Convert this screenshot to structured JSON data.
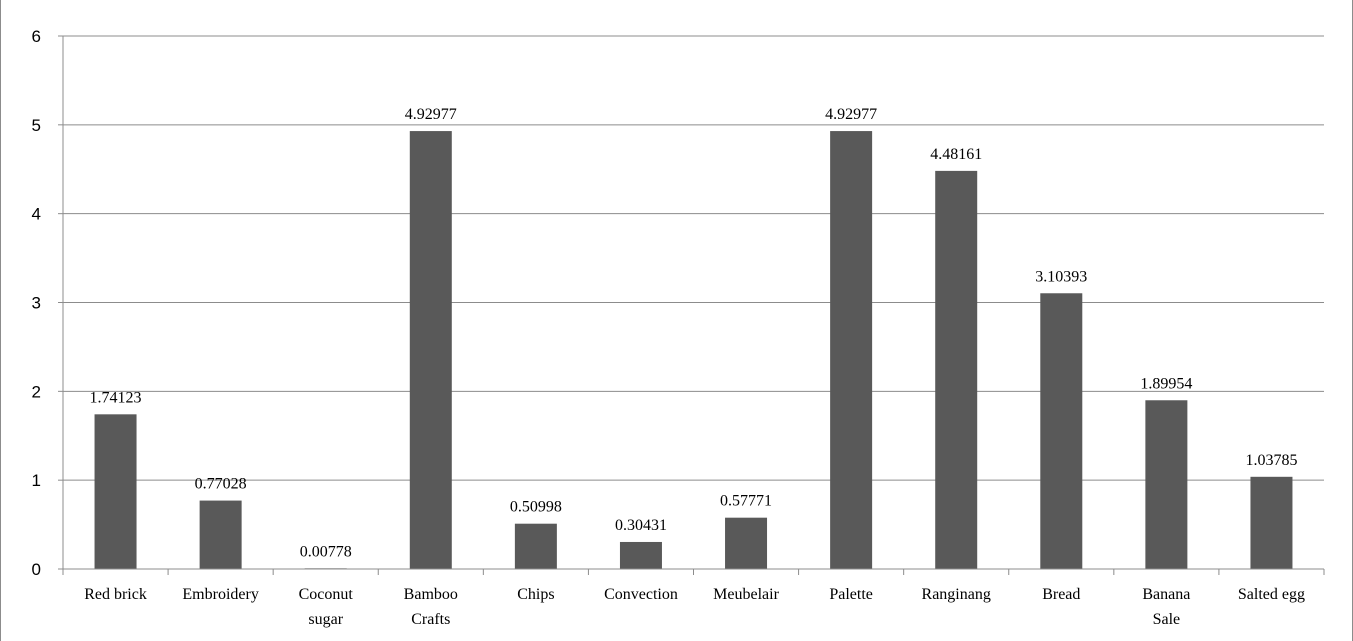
{
  "chart_data": {
    "type": "bar",
    "categories": [
      [
        "Red brick"
      ],
      [
        "Embroidery"
      ],
      [
        "Coconut",
        "sugar"
      ],
      [
        "Bamboo",
        "Crafts"
      ],
      [
        "Chips"
      ],
      [
        "Convection"
      ],
      [
        "Meubelair"
      ],
      [
        "Palette"
      ],
      [
        "Ranginang"
      ],
      [
        "Bread"
      ],
      [
        "Banana",
        "Sale"
      ],
      [
        "Salted egg"
      ]
    ],
    "values": [
      1.74123,
      0.77028,
      0.00778,
      4.92977,
      0.50998,
      0.30431,
      0.57771,
      4.92977,
      4.48161,
      3.10393,
      1.89954,
      1.03785
    ],
    "data_labels": [
      "1.74123",
      "0.77028",
      "0.00778",
      "4.92977",
      "0.50998",
      "0.30431",
      "0.57771",
      "4.92977",
      "4.48161",
      "3.10393",
      "1.89954",
      "1.03785"
    ],
    "yticks": [
      "0",
      "1",
      "2",
      "3",
      "4",
      "5",
      "6"
    ],
    "ylim": [
      0,
      6
    ],
    "title": "",
    "xlabel": "",
    "ylabel": "",
    "grid": true,
    "legend": "none",
    "bar_color": "#595959",
    "grid_color": "#8c8c8c"
  }
}
